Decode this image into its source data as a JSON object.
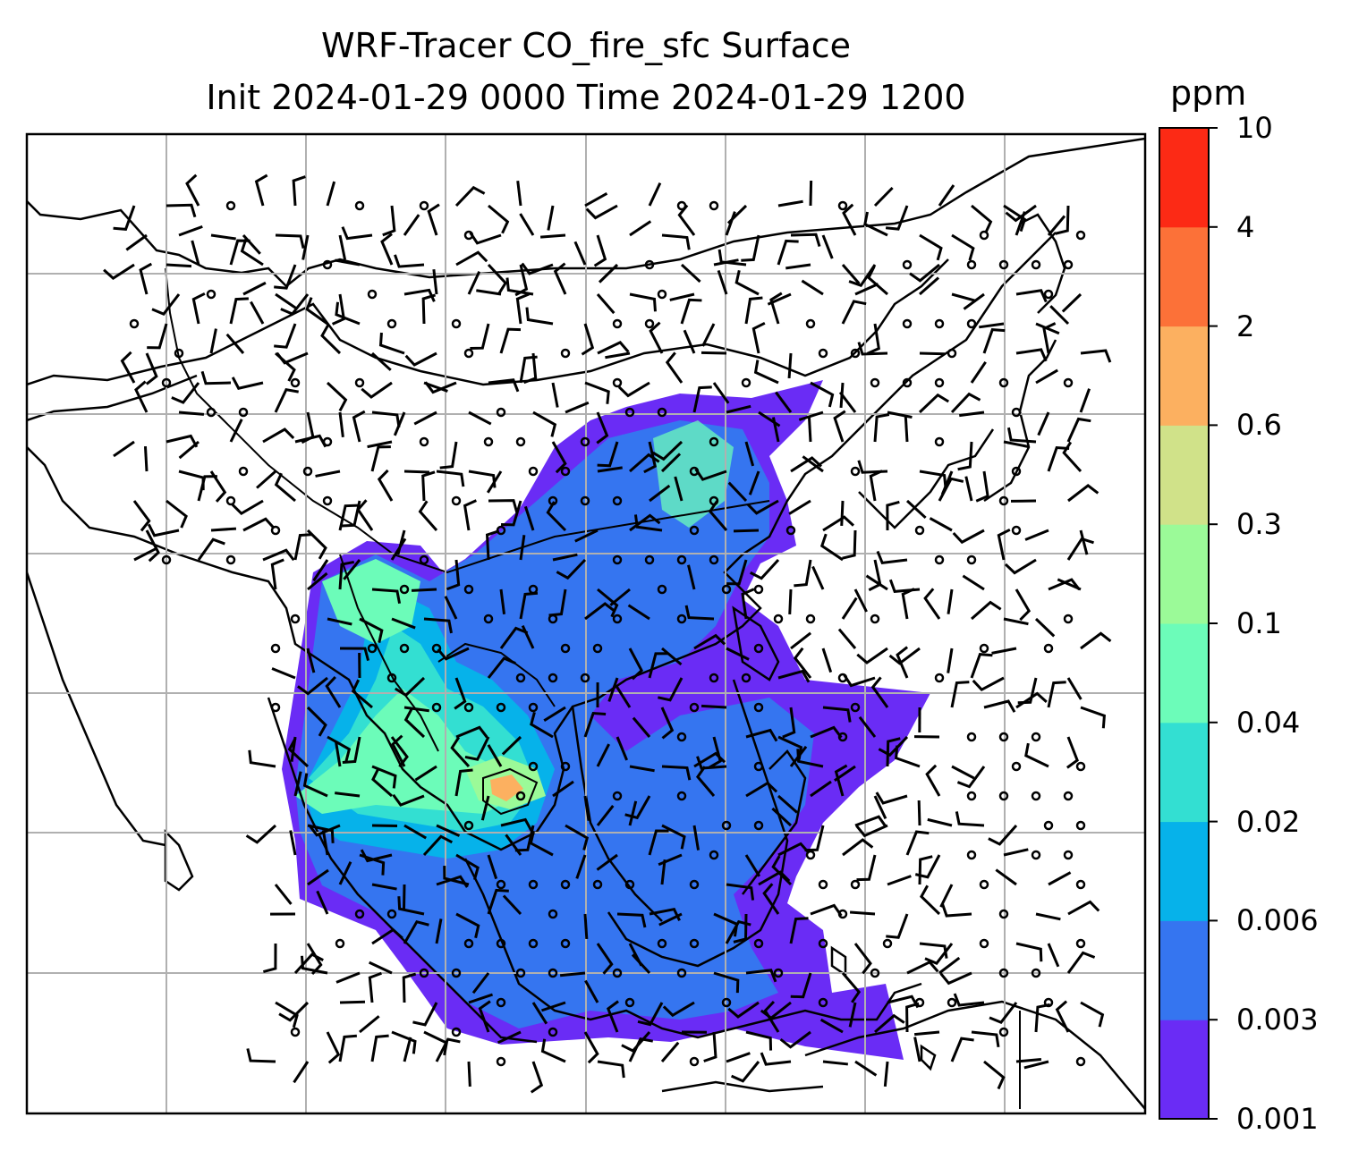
{
  "title": {
    "line1": "WRF-Tracer CO_fire_sfc Surface",
    "line2": "Init 2024-01-29 0000 Time 2024-01-29 1200"
  },
  "colorbar": {
    "unit": "ppm",
    "levels": [
      "0.001",
      "0.003",
      "0.006",
      "0.02",
      "0.04",
      "0.1",
      "0.3",
      "0.6",
      "2",
      "4",
      "10"
    ],
    "colors": [
      "#6a2cf5",
      "#3575f0",
      "#06b2ea",
      "#33dfd2",
      "#6cfcb9",
      "#9bfa98",
      "#d0e289",
      "#fcb060",
      "#fc7138",
      "#fc2a15"
    ]
  },
  "map": {
    "projection": "lat-lon",
    "gridlines": true,
    "features": [
      "coastlines",
      "country-borders",
      "wind-barbs",
      "filled-contours"
    ],
    "colors": {
      "land_outline": "#000000",
      "grid": "#b0b0b0",
      "frame": "#000000"
    }
  }
}
